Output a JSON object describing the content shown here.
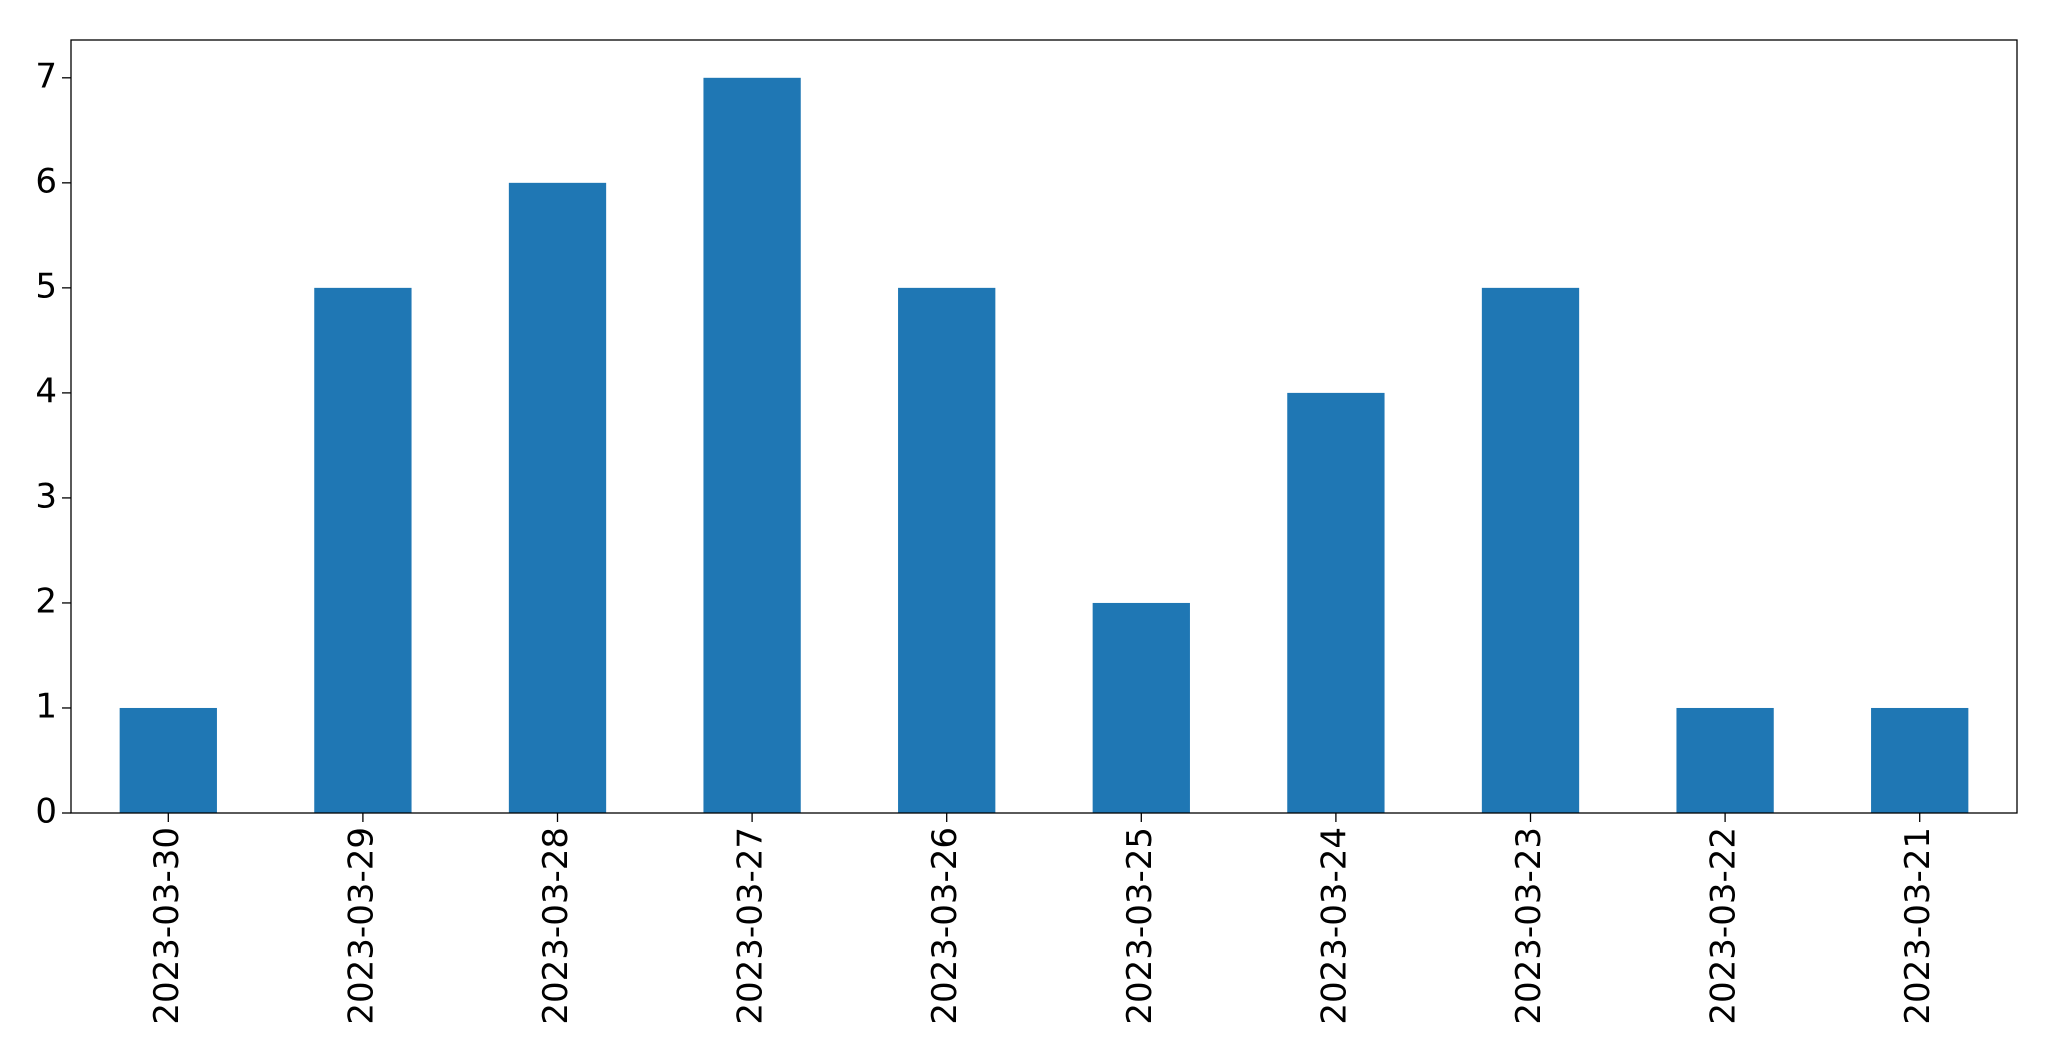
{
  "chart_data": {
    "type": "bar",
    "categories": [
      "2023-03-30",
      "2023-03-29",
      "2023-03-28",
      "2023-03-27",
      "2023-03-26",
      "2023-03-25",
      "2023-03-24",
      "2023-03-23",
      "2023-03-22",
      "2023-03-21"
    ],
    "values": [
      1,
      5,
      6,
      7,
      5,
      2,
      4,
      5,
      1,
      1
    ],
    "color": "#1f77b4",
    "ylim": [
      0,
      7.36
    ],
    "yticks": [
      0,
      1,
      2,
      3,
      4,
      5,
      6,
      7
    ],
    "grid": false
  }
}
